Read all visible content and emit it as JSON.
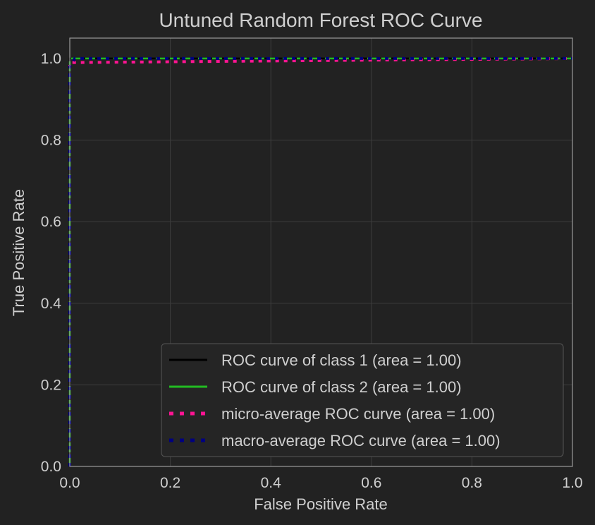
{
  "chart_data": {
    "type": "line",
    "title": "Untuned Random Forest ROC Curve",
    "xlabel": "False Positive Rate",
    "ylabel": "True Positive Rate",
    "xlim": [
      0.0,
      1.0
    ],
    "ylim": [
      0.0,
      1.05
    ],
    "xticks": [
      "0.0",
      "0.2",
      "0.4",
      "0.6",
      "0.8",
      "1.0"
    ],
    "yticks": [
      "0.0",
      "0.2",
      "0.4",
      "0.6",
      "0.8",
      "1.0"
    ],
    "grid": true,
    "legend_position": "lower-right",
    "series": [
      {
        "name": "ROC curve of class 1 (area = 1.00)",
        "color": "#000000",
        "style": "solid",
        "x": [
          0.0,
          0.0,
          1.0
        ],
        "y": [
          0.0,
          1.0,
          1.0
        ]
      },
      {
        "name": "ROC curve of class 2 (area = 1.00)",
        "color": "#22bb22",
        "style": "dashed",
        "x": [
          0.0,
          0.0,
          1.0
        ],
        "y": [
          0.0,
          1.0,
          1.0
        ]
      },
      {
        "name": "micro-average ROC curve (area = 1.00)",
        "color": "#ff1493",
        "style": "dotted",
        "x": [
          0.0,
          0.0,
          1.0
        ],
        "y": [
          0.0,
          0.99,
          1.0
        ]
      },
      {
        "name": "macro-average ROC curve (area = 1.00)",
        "color": "#000080",
        "style": "dotted",
        "x": [
          0.0,
          0.0,
          0.01,
          1.0
        ],
        "y": [
          0.0,
          0.98,
          1.0,
          1.0
        ]
      }
    ]
  }
}
